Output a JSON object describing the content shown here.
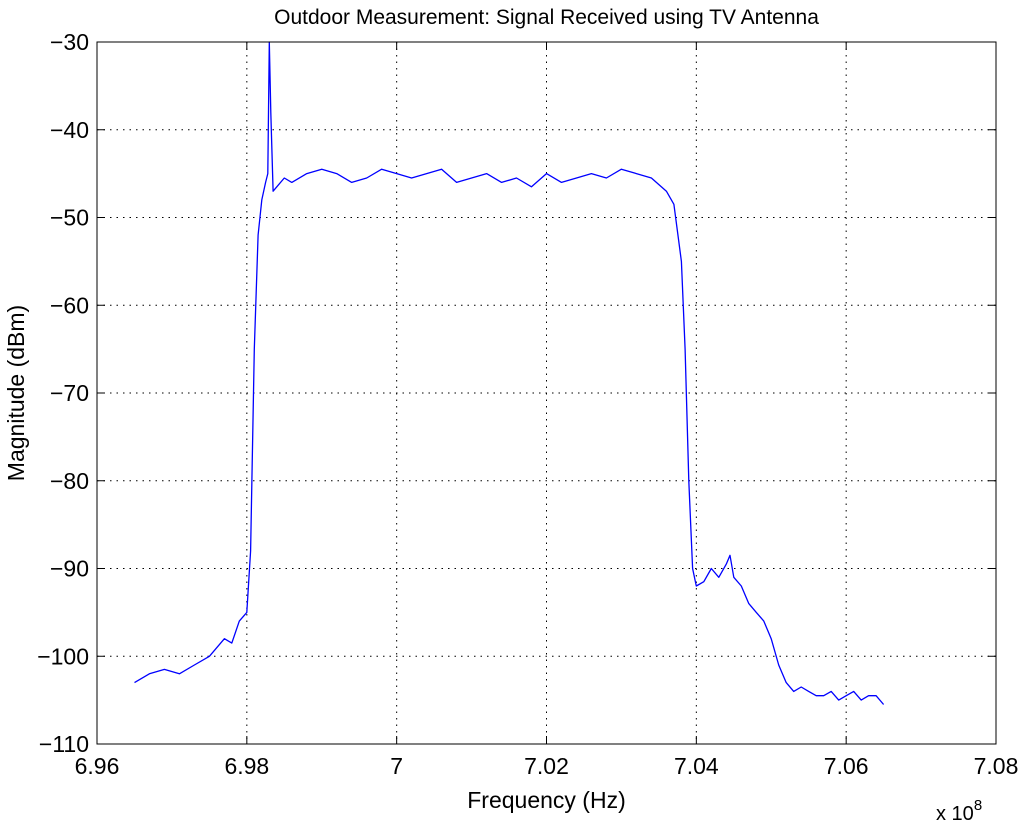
{
  "chart_data": {
    "type": "line",
    "title": "Outdoor Measurement: Signal Received using TV Antenna",
    "xlabel": "Frequency (Hz)",
    "ylabel": "Magnitude (dBm)",
    "x_multiplier": {
      "base": "x 10",
      "exponent": "8"
    },
    "xlim": [
      6.96,
      7.08
    ],
    "ylim": [
      -110,
      -30
    ],
    "x_unit_scale": 100000000,
    "x_ticks": [
      6.96,
      6.98,
      7.0,
      7.02,
      7.04,
      7.06,
      7.08
    ],
    "x_tick_labels": [
      "6.96",
      "6.98",
      "7",
      "7.02",
      "7.04",
      "7.06",
      "7.08"
    ],
    "y_ticks": [
      -30,
      -40,
      -50,
      -60,
      -70,
      -80,
      -90,
      -100,
      -110
    ],
    "y_tick_labels": [
      "−30",
      "−40",
      "−50",
      "−60",
      "−70",
      "−80",
      "−90",
      "−100",
      "−110"
    ],
    "grid": true,
    "grid_style": "dotted",
    "line_color": "#0000ff",
    "series": [
      {
        "x": [
          6.965,
          6.967,
          6.969,
          6.971,
          6.973,
          6.975,
          6.977,
          6.978,
          6.979,
          6.98,
          6.9805,
          6.981,
          6.9815,
          6.982,
          6.9825,
          6.9828,
          6.983,
          6.9832,
          6.9835,
          6.984,
          6.985,
          6.986,
          6.988,
          6.99,
          6.992,
          6.994,
          6.996,
          6.998,
          7.0,
          7.002,
          7.004,
          7.006,
          7.008,
          7.01,
          7.012,
          7.014,
          7.016,
          7.018,
          7.02,
          7.022,
          7.024,
          7.026,
          7.028,
          7.03,
          7.032,
          7.034,
          7.036,
          7.037,
          7.038,
          7.0385,
          7.039,
          7.0395,
          7.04,
          7.041,
          7.042,
          7.043,
          7.044,
          7.0445,
          7.045,
          7.046,
          7.047,
          7.048,
          7.049,
          7.05,
          7.051,
          7.052,
          7.053,
          7.054,
          7.055,
          7.056,
          7.057,
          7.058,
          7.059,
          7.06,
          7.061,
          7.062,
          7.063,
          7.064,
          7.065
        ],
        "y": [
          -103,
          -102,
          -101.5,
          -102,
          -101,
          -100,
          -98,
          -98.5,
          -96,
          -95,
          -88,
          -65,
          -52,
          -48,
          -46,
          -45,
          -30,
          -38,
          -47,
          -46.5,
          -45.5,
          -46,
          -45,
          -44.5,
          -45,
          -46,
          -45.5,
          -44.5,
          -45,
          -45.5,
          -45,
          -44.5,
          -46,
          -45.5,
          -45,
          -46,
          -45.5,
          -46.5,
          -45,
          -46,
          -45.5,
          -45,
          -45.5,
          -44.5,
          -45,
          -45.5,
          -47,
          -48.5,
          -55,
          -65,
          -80,
          -90,
          -92,
          -91.5,
          -90,
          -91,
          -89.5,
          -88.5,
          -91,
          -92,
          -94,
          -95,
          -96,
          -98,
          -101,
          -103,
          -104,
          -103.5,
          -104,
          -104.5,
          -104.5,
          -104,
          -105,
          -104.5,
          -104,
          -105,
          -104.5,
          -104.5,
          -105.5
        ]
      }
    ]
  }
}
